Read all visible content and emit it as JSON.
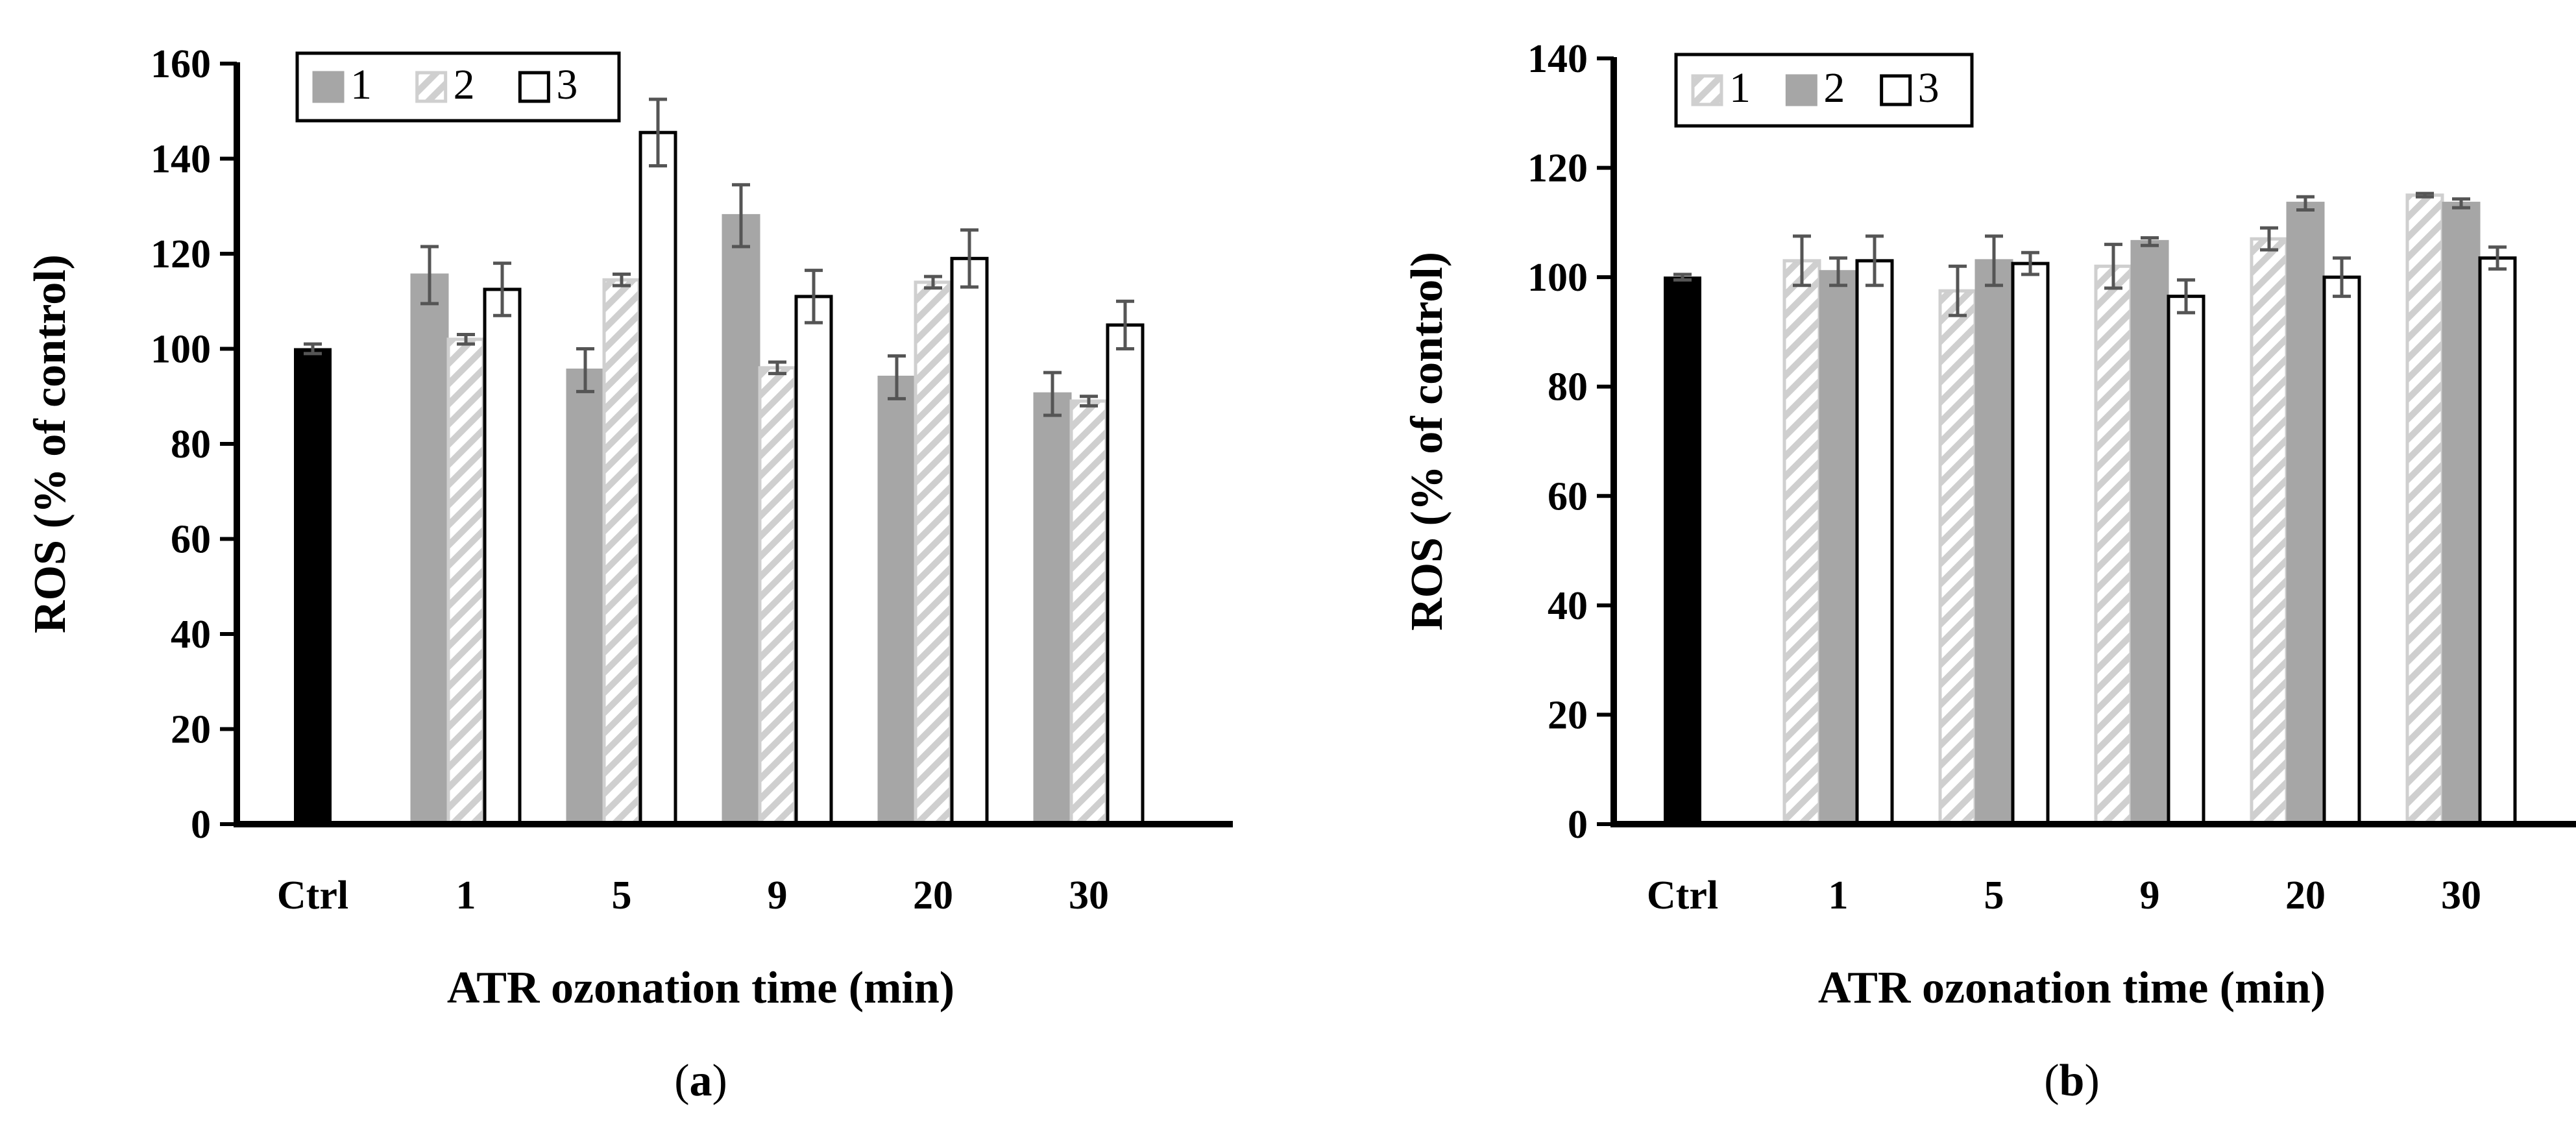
{
  "chart_data": [
    {
      "type": "bar",
      "panel_label": "(a)",
      "panel_letter": "a",
      "xlabel": "ATR ozonation time (min)",
      "ylabel": "ROS (% of control)",
      "ylim": [
        0,
        160
      ],
      "yticks": [
        0,
        20,
        40,
        60,
        80,
        100,
        120,
        140,
        160
      ],
      "control": {
        "label": "Ctrl",
        "value": 100,
        "error": 1,
        "color": "#000000"
      },
      "categories": [
        "1",
        "5",
        "9",
        "20",
        "30"
      ],
      "series": [
        {
          "name": "1",
          "pattern": "solid-gray",
          "values": [
            115.5,
            95.5,
            128,
            94,
            90.5
          ],
          "errors": [
            6,
            4.5,
            6.5,
            4.5,
            4.5
          ]
        },
        {
          "name": "2",
          "pattern": "hatched",
          "values": [
            102,
            114.5,
            96,
            114,
            89
          ],
          "errors": [
            1,
            1.2,
            1.2,
            1.2,
            1
          ]
        },
        {
          "name": "3",
          "pattern": "white",
          "values": [
            112.5,
            145.5,
            111,
            119,
            105
          ],
          "errors": [
            5.5,
            7,
            5.5,
            6,
            5
          ]
        }
      ],
      "legend_order": [
        "1",
        "2",
        "3"
      ],
      "legend_position": "top-left",
      "grid": false
    },
    {
      "type": "bar",
      "panel_label": "(b)",
      "panel_letter": "b",
      "xlabel": "ATR ozonation time (min)",
      "ylabel": "ROS (% of control)",
      "ylim": [
        0,
        140
      ],
      "yticks": [
        0,
        20,
        40,
        60,
        80,
        100,
        120,
        140
      ],
      "control": {
        "label": "Ctrl",
        "value": 100,
        "error": 0.5,
        "color": "#000000"
      },
      "categories": [
        "1",
        "5",
        "9",
        "20",
        "30"
      ],
      "series": [
        {
          "name": "1",
          "pattern": "hatched",
          "values": [
            103,
            97.5,
            102,
            107,
            115
          ],
          "errors": [
            4.5,
            4.5,
            4,
            2,
            0.3
          ]
        },
        {
          "name": "2",
          "pattern": "solid-gray",
          "values": [
            101,
            103,
            106.5,
            113.5,
            113.5
          ],
          "errors": [
            2.5,
            4.5,
            0.7,
            1.2,
            0.8
          ]
        },
        {
          "name": "3",
          "pattern": "white",
          "values": [
            103,
            102.5,
            96.5,
            100,
            103.5
          ],
          "errors": [
            4.5,
            2,
            3,
            3.5,
            2
          ]
        }
      ],
      "legend_order": [
        "1",
        "2",
        "3"
      ],
      "legend_position": "top-left",
      "grid": false
    }
  ]
}
